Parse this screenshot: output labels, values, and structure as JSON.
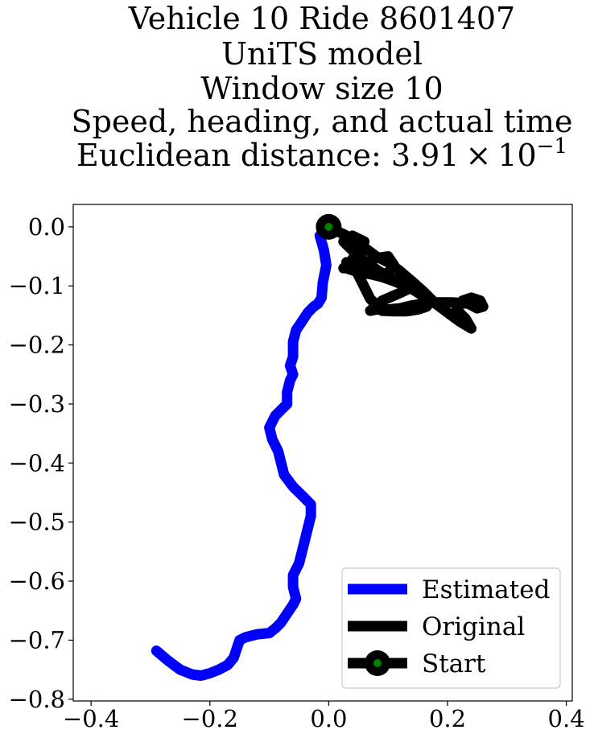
{
  "chart_data": {
    "type": "line",
    "title_lines": [
      "Vehicle 10 Ride 8601407",
      "UniTS model",
      "Window size 10",
      "Speed, heading, and actual time"
    ],
    "title_metric": {
      "prefix": "Euclidean distance: ",
      "mantissa": "3.91",
      "times": "×",
      "base": "10",
      "exponent": "−1"
    },
    "xlim": [
      -0.43,
      0.41
    ],
    "ylim": [
      -0.803,
      0.038
    ],
    "x_ticks": [
      {
        "value": -0.4,
        "label": "−0.4"
      },
      {
        "value": -0.2,
        "label": "−0.2"
      },
      {
        "value": 0.0,
        "label": "0.0"
      },
      {
        "value": 0.2,
        "label": "0.2"
      },
      {
        "value": 0.4,
        "label": "0.4"
      }
    ],
    "y_ticks": [
      {
        "value": 0.0,
        "label": "0.0"
      },
      {
        "value": -0.1,
        "label": "−0.1"
      },
      {
        "value": -0.2,
        "label": "−0.2"
      },
      {
        "value": -0.3,
        "label": "−0.3"
      },
      {
        "value": -0.4,
        "label": "−0.4"
      },
      {
        "value": -0.5,
        "label": "−0.5"
      },
      {
        "value": -0.6,
        "label": "−0.6"
      },
      {
        "value": -0.7,
        "label": "−0.7"
      },
      {
        "value": -0.8,
        "label": "−0.8"
      }
    ],
    "grid": false,
    "legend_position": "lower-right",
    "series": [
      {
        "name": "Estimated",
        "color": "#0000ff",
        "points": [
          [
            0.0,
            0.0
          ],
          [
            -0.015,
            -0.015
          ],
          [
            -0.008,
            -0.04
          ],
          [
            -0.004,
            -0.065
          ],
          [
            -0.01,
            -0.095
          ],
          [
            -0.012,
            -0.12
          ],
          [
            -0.018,
            -0.13
          ],
          [
            -0.025,
            -0.135
          ],
          [
            -0.035,
            -0.145
          ],
          [
            -0.045,
            -0.16
          ],
          [
            -0.055,
            -0.175
          ],
          [
            -0.06,
            -0.195
          ],
          [
            -0.06,
            -0.22
          ],
          [
            -0.065,
            -0.235
          ],
          [
            -0.06,
            -0.25
          ],
          [
            -0.065,
            -0.26
          ],
          [
            -0.07,
            -0.28
          ],
          [
            -0.07,
            -0.3
          ],
          [
            -0.08,
            -0.31
          ],
          [
            -0.09,
            -0.32
          ],
          [
            -0.095,
            -0.33
          ],
          [
            -0.1,
            -0.34
          ],
          [
            -0.095,
            -0.36
          ],
          [
            -0.085,
            -0.38
          ],
          [
            -0.08,
            -0.4
          ],
          [
            -0.075,
            -0.42
          ],
          [
            -0.06,
            -0.44
          ],
          [
            -0.05,
            -0.45
          ],
          [
            -0.04,
            -0.46
          ],
          [
            -0.03,
            -0.47
          ],
          [
            -0.03,
            -0.49
          ],
          [
            -0.035,
            -0.51
          ],
          [
            -0.04,
            -0.53
          ],
          [
            -0.045,
            -0.55
          ],
          [
            -0.05,
            -0.57
          ],
          [
            -0.06,
            -0.59
          ],
          [
            -0.06,
            -0.61
          ],
          [
            -0.055,
            -0.63
          ],
          [
            -0.06,
            -0.64
          ],
          [
            -0.07,
            -0.655
          ],
          [
            -0.08,
            -0.67
          ],
          [
            -0.09,
            -0.68
          ],
          [
            -0.1,
            -0.688
          ],
          [
            -0.12,
            -0.69
          ],
          [
            -0.14,
            -0.695
          ],
          [
            -0.15,
            -0.7
          ],
          [
            -0.155,
            -0.715
          ],
          [
            -0.16,
            -0.73
          ],
          [
            -0.17,
            -0.742
          ],
          [
            -0.185,
            -0.75
          ],
          [
            -0.2,
            -0.756
          ],
          [
            -0.215,
            -0.76
          ],
          [
            -0.23,
            -0.758
          ],
          [
            -0.25,
            -0.75
          ],
          [
            -0.27,
            -0.735
          ],
          [
            -0.29,
            -0.718
          ]
        ]
      },
      {
        "name": "Original",
        "color": "#000000",
        "points": [
          [
            0.0,
            0.0
          ],
          [
            0.03,
            -0.015
          ],
          [
            0.06,
            -0.035
          ],
          [
            0.08,
            -0.05
          ],
          [
            0.1,
            -0.06
          ],
          [
            0.12,
            -0.075
          ],
          [
            0.14,
            -0.092
          ],
          [
            0.16,
            -0.11
          ],
          [
            0.18,
            -0.13
          ],
          [
            0.2,
            -0.145
          ],
          [
            0.22,
            -0.16
          ],
          [
            0.24,
            -0.172
          ],
          [
            0.23,
            -0.155
          ],
          [
            0.215,
            -0.14
          ],
          [
            0.225,
            -0.125
          ],
          [
            0.24,
            -0.12
          ],
          [
            0.255,
            -0.125
          ],
          [
            0.26,
            -0.135
          ],
          [
            0.25,
            -0.138
          ],
          [
            0.235,
            -0.13
          ],
          [
            0.21,
            -0.128
          ],
          [
            0.18,
            -0.128
          ],
          [
            0.16,
            -0.13
          ],
          [
            0.14,
            -0.133
          ],
          [
            0.12,
            -0.138
          ],
          [
            0.1,
            -0.14
          ],
          [
            0.08,
            -0.14
          ],
          [
            0.07,
            -0.142
          ],
          [
            0.09,
            -0.125
          ],
          [
            0.12,
            -0.112
          ],
          [
            0.145,
            -0.1
          ],
          [
            0.16,
            -0.12
          ],
          [
            0.165,
            -0.135
          ],
          [
            0.15,
            -0.14
          ],
          [
            0.13,
            -0.143
          ],
          [
            0.11,
            -0.143
          ],
          [
            0.09,
            -0.142
          ],
          [
            0.07,
            -0.122
          ],
          [
            0.06,
            -0.102
          ],
          [
            0.05,
            -0.082
          ],
          [
            0.06,
            -0.063
          ],
          [
            0.08,
            -0.053
          ],
          [
            0.1,
            -0.05
          ],
          [
            0.11,
            -0.065
          ],
          [
            0.1,
            -0.078
          ],
          [
            0.085,
            -0.08
          ],
          [
            0.07,
            -0.07
          ],
          [
            0.05,
            -0.06
          ],
          [
            0.03,
            -0.06
          ],
          [
            0.03,
            -0.07
          ],
          [
            0.05,
            -0.077
          ],
          [
            0.07,
            -0.08
          ],
          [
            0.09,
            -0.085
          ],
          [
            0.11,
            -0.092
          ],
          [
            0.13,
            -0.1
          ],
          [
            0.15,
            -0.11
          ],
          [
            0.17,
            -0.125
          ],
          [
            0.18,
            -0.13
          ],
          [
            0.16,
            -0.118
          ],
          [
            0.14,
            -0.105
          ],
          [
            0.12,
            -0.093
          ],
          [
            0.1,
            -0.085
          ],
          [
            0.08,
            -0.072
          ],
          [
            0.06,
            -0.058
          ],
          [
            0.04,
            -0.04
          ],
          [
            0.025,
            -0.025
          ],
          [
            0.04,
            -0.015
          ],
          [
            0.06,
            -0.025
          ],
          [
            0.05,
            -0.04
          ],
          [
            0.035,
            -0.062
          ],
          [
            0.025,
            -0.07
          ]
        ]
      }
    ],
    "start_point": {
      "name": "Start",
      "x": 0.0,
      "y": 0.0,
      "outer_color": "#000000",
      "inner_color": "#008000"
    },
    "legend": [
      {
        "label": "Estimated",
        "color": "#0000ff",
        "kind": "line"
      },
      {
        "label": "Original",
        "color": "#000000",
        "kind": "line"
      },
      {
        "label": "Start",
        "color": "#000000",
        "marker_color": "#008000",
        "kind": "line-marker"
      }
    ]
  }
}
